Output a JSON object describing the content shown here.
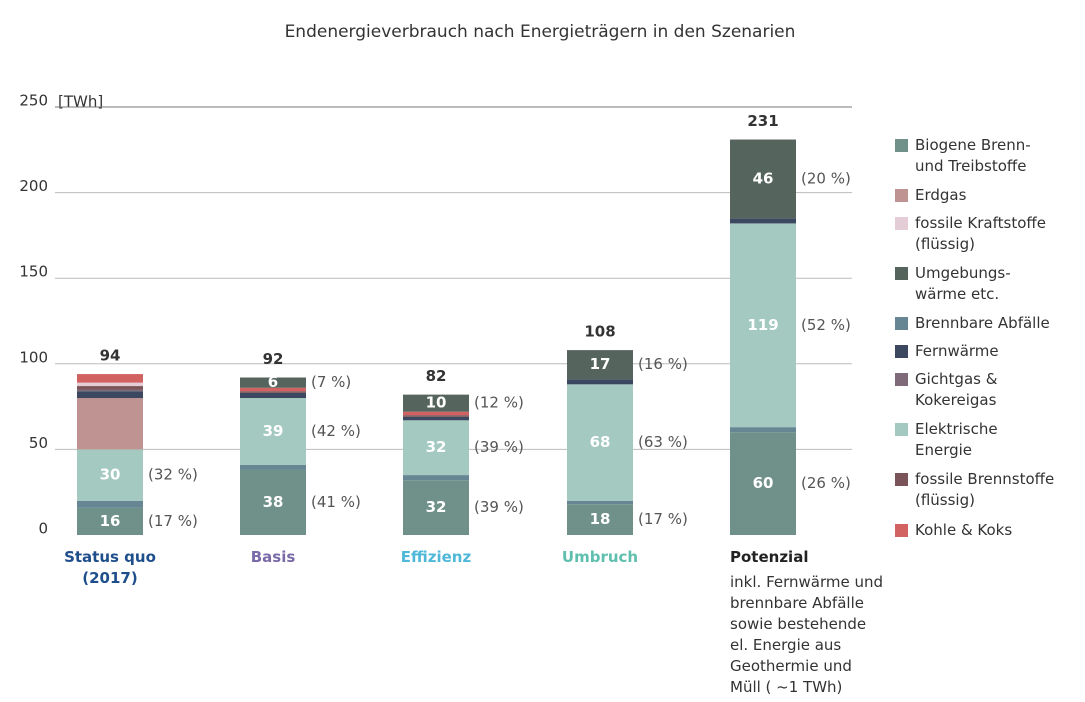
{
  "chart_data": {
    "type": "stacked_bar",
    "title": "Endenergieverbrauch nach Energieträgern in den Szenarien",
    "y_unit": "[TWh]",
    "categories": [
      "Status quo\n(2017)",
      "Basis",
      "Effizienz",
      "Umbruch",
      "Potenzial"
    ],
    "category_colors": [
      "#1f4e8c",
      "#7a6aa8",
      "#4fb8d8",
      "#5fbfae",
      "#222222"
    ],
    "category_note": [
      null,
      null,
      null,
      null,
      "inkl. Fernwärme und\nbrennbare Abfälle\nsowie bestehende\nel. Energie aus\nGeothermie und\nMüll ( ~1 TWh)"
    ],
    "totals": [
      94,
      92,
      82,
      108,
      231
    ],
    "ylim": [
      0,
      250
    ],
    "yticks": [
      0,
      50,
      100,
      150,
      200,
      250
    ],
    "grid": true,
    "stack_order": [
      0,
      4,
      7,
      1,
      5,
      6,
      8,
      2,
      9,
      3
    ],
    "series": [
      {
        "name": "Biogene Brenn-\nund Treibstoffe",
        "color": "#6f9189",
        "values": [
          16,
          38,
          32,
          18,
          60
        ],
        "share_labels": [
          "(17 %)",
          "(41 %)",
          "(39 %)",
          "(17 %)",
          "(26 %)"
        ]
      },
      {
        "name": "Erdgas",
        "color": "#c09393",
        "values": [
          30,
          0,
          0,
          0,
          0
        ]
      },
      {
        "name": "fossile Kraftstoffe\n(flüssig)",
        "color": "#e4cdd6",
        "values": [
          2,
          0,
          0,
          0,
          0
        ]
      },
      {
        "name": "Umgebungs-\nwärme etc.",
        "color": "#56645e",
        "values": [
          0,
          6,
          10,
          17,
          46
        ],
        "share_labels": [
          null,
          "(7 %)",
          "(12 %)",
          "(16 %)",
          "(20 %)"
        ]
      },
      {
        "name": "Brennbare Abfälle",
        "color": "#668694",
        "values": [
          4,
          3,
          3,
          2,
          3
        ]
      },
      {
        "name": "Fernwärme",
        "color": "#3c4860",
        "values": [
          4,
          3,
          2,
          3,
          3
        ]
      },
      {
        "name": "Gichtgas &\nKokereigas",
        "color": "#7e6a78",
        "values": [
          1,
          0,
          0,
          0,
          0
        ]
      },
      {
        "name": "Elektrische\nEnergie",
        "color": "#a4c9c0",
        "values": [
          30,
          39,
          32,
          68,
          119
        ],
        "share_labels": [
          "(32 %)",
          "(42 %)",
          "(39 %)",
          "(63 %)",
          "(52 %)"
        ]
      },
      {
        "name": "fossile Brennstoffe\n(flüssig)",
        "color": "#7a5458",
        "values": [
          2,
          1,
          1,
          0,
          0
        ]
      },
      {
        "name": "Kohle & Koks",
        "color": "#d26262",
        "values": [
          5,
          2,
          2,
          0,
          0
        ]
      }
    ]
  }
}
